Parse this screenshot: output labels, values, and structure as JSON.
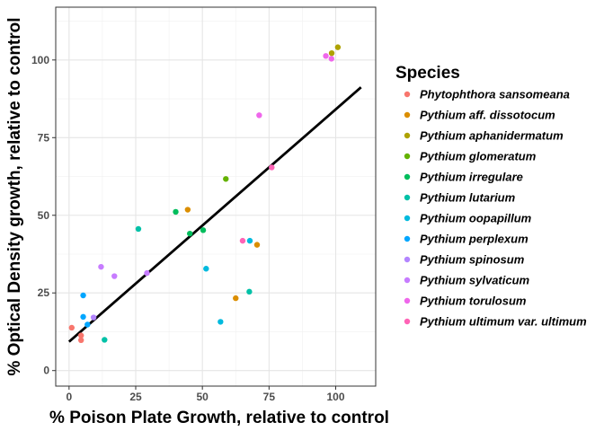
{
  "chart_data": {
    "type": "scatter",
    "xlabel": "% Poison Plate Growth, relative to control",
    "ylabel": "% Optical Density growth, relative to control",
    "xlim": [
      -5,
      115
    ],
    "ylim": [
      -5,
      117
    ],
    "x_ticks": [
      0,
      25,
      50,
      75,
      100
    ],
    "y_ticks": [
      0,
      25,
      50,
      75,
      100
    ],
    "grid": true,
    "legend_position": "right",
    "legend_title": "Species",
    "series": [
      {
        "name": "Phytophthora sansomeana",
        "color": "#F8766D",
        "points": [
          [
            1,
            13.8
          ],
          [
            4.5,
            11.3
          ],
          [
            4.5,
            9.8
          ]
        ]
      },
      {
        "name": "Pythium aff. dissotocum",
        "color": "#DB8E00",
        "points": [
          [
            44.5,
            51.8
          ],
          [
            62.5,
            23.3
          ],
          [
            70.5,
            40.5
          ]
        ]
      },
      {
        "name": "Pythium aphanidermatum",
        "color": "#AEA200",
        "points": [
          [
            98.5,
            102.2
          ],
          [
            100.8,
            104.1
          ]
        ]
      },
      {
        "name": "Pythium glomeratum",
        "color": "#64B200",
        "points": [
          [
            58.8,
            61.7
          ]
        ]
      },
      {
        "name": "Pythium irregulare",
        "color": "#00BD5C",
        "points": [
          [
            40,
            51.1
          ],
          [
            45.3,
            44.1
          ],
          [
            50.3,
            45.2
          ]
        ]
      },
      {
        "name": "Pythium lutarium",
        "color": "#00C1A7",
        "points": [
          [
            26,
            45.6
          ],
          [
            13.3,
            9.9
          ],
          [
            67.6,
            25.4
          ]
        ]
      },
      {
        "name": "Pythium oopapillum",
        "color": "#00BADE",
        "points": [
          [
            51.4,
            32.8
          ],
          [
            56.8,
            15.7
          ],
          [
            67.8,
            41.8
          ]
        ]
      },
      {
        "name": "Pythium perplexum",
        "color": "#00A6FF",
        "points": [
          [
            5.3,
            24.2
          ],
          [
            5.3,
            17.3
          ],
          [
            6.9,
            14.8
          ]
        ]
      },
      {
        "name": "Pythium spinosum",
        "color": "#B385FF",
        "points": [
          [
            9.2,
            17.1
          ]
        ]
      },
      {
        "name": "Pythium sylvaticum",
        "color": "#C77CFF",
        "points": [
          [
            12,
            33.4
          ],
          [
            17,
            30.4
          ],
          [
            29.2,
            31.4
          ]
        ]
      },
      {
        "name": "Pythium torulosum",
        "color": "#EF67EB",
        "points": [
          [
            96.3,
            101.3
          ],
          [
            98.4,
            100.4
          ],
          [
            71.3,
            82.2
          ]
        ]
      },
      {
        "name": "Pythium ultimum var. ultimum",
        "color": "#FF63B6",
        "points": [
          [
            65.1,
            41.8
          ],
          [
            76,
            65.4
          ]
        ]
      }
    ],
    "fit_line": {
      "x": [
        0,
        109.5
      ],
      "y": [
        9.3,
        91.2
      ],
      "color": "#000000"
    }
  }
}
